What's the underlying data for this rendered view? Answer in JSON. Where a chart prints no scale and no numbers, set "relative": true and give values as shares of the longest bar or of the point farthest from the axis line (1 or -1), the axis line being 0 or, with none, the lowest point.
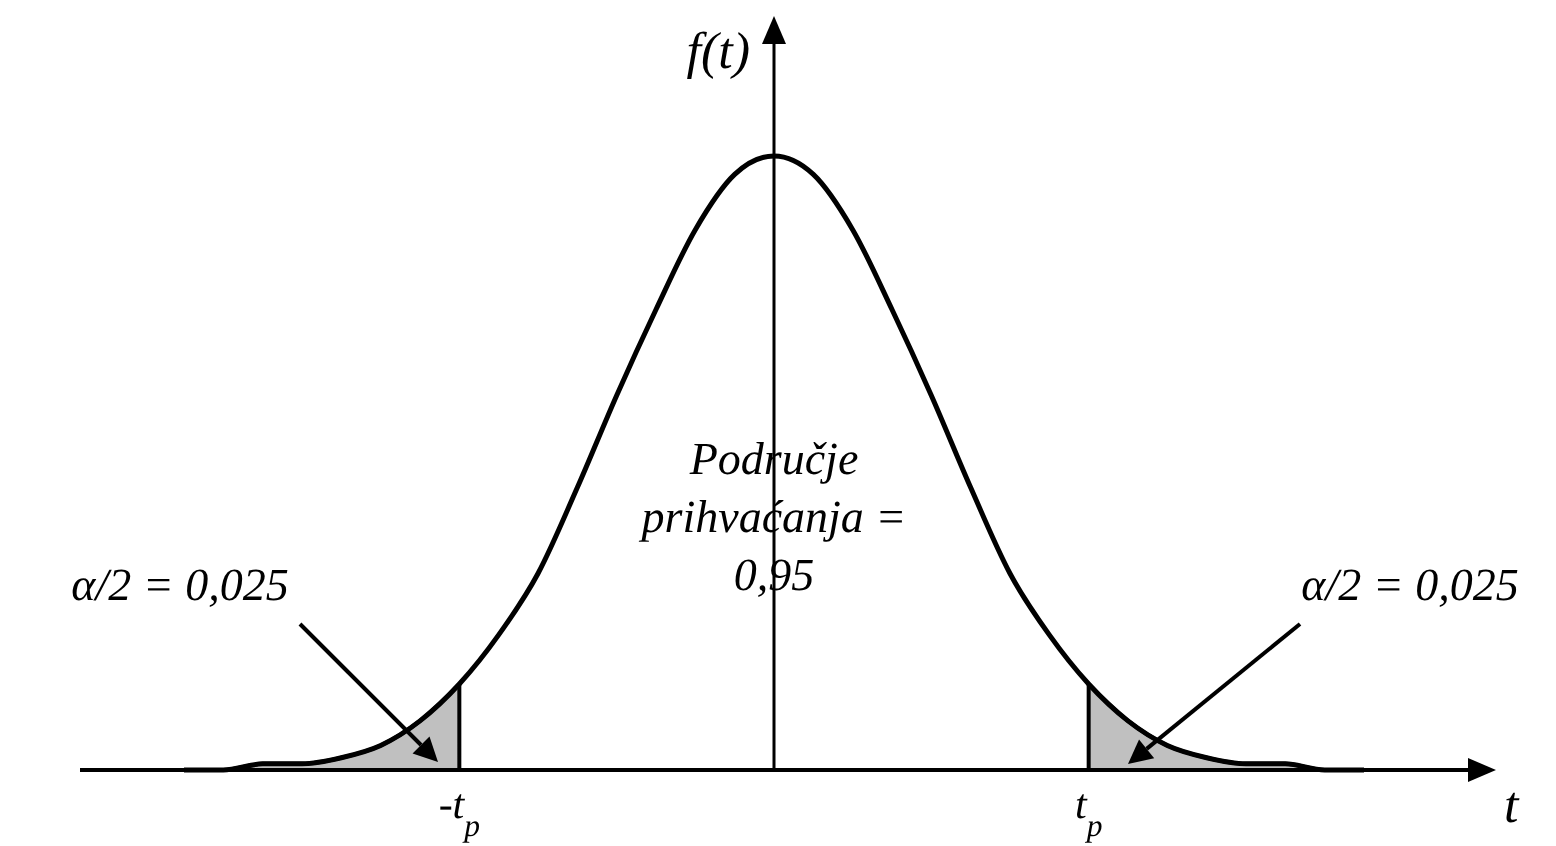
{
  "chart_data": {
    "type": "line",
    "relative": true,
    "xlabel": "t",
    "ylabel": "f(t)",
    "categories": [
      null,
      null,
      null,
      null,
      null,
      null,
      null,
      "-t$_{p}$",
      null,
      null,
      null,
      null,
      null,
      null,
      null,
      null,
      null,
      null,
      null,
      null,
      null,
      null,
      null,
      "t$_{p}$",
      null,
      null,
      null,
      null,
      null,
      null,
      null
    ],
    "series": [
      {
        "type": "area",
        "color": "#c0c0c0",
        "values": [
          0,
          0,
          0.01,
          0.01,
          0.02,
          0.04,
          0.08,
          0.14,
          null,
          null,
          null,
          null,
          null,
          null,
          null,
          null,
          null,
          null,
          null,
          null,
          null,
          null,
          null,
          null,
          null,
          null,
          null,
          null,
          null,
          null,
          null
        ]
      },
      {
        "type": "area",
        "color": "#c0c0c0",
        "values": [
          null,
          null,
          null,
          null,
          null,
          null,
          null,
          null,
          null,
          null,
          null,
          null,
          null,
          null,
          null,
          null,
          null,
          null,
          null,
          null,
          null,
          null,
          null,
          0.14,
          0.08,
          0.04,
          0.02,
          0.01,
          0.01,
          0,
          0
        ]
      },
      {
        "color": "#000000",
        "values": [
          0,
          0,
          0.01,
          0.01,
          0.02,
          0.04,
          0.08,
          0.14,
          0.22,
          0.32,
          0.46,
          0.61,
          0.75,
          0.88,
          0.97,
          1,
          0.97,
          0.88,
          0.75,
          0.61,
          0.46,
          0.32,
          0.22,
          0.14,
          0.08,
          0.04,
          0.02,
          0.01,
          0.01,
          0,
          0
        ]
      }
    ],
    "annotations": [
      "α/2 = 0,025",
      "Područje prihvaćanja = 0,95",
      "α/2 = 0,025"
    ]
  }
}
